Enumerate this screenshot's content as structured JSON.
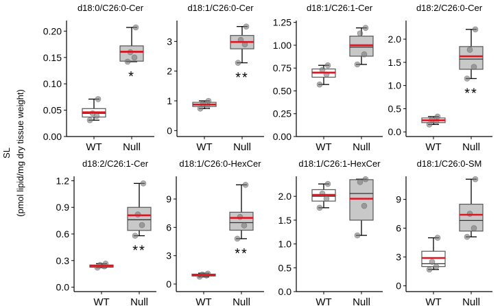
{
  "figure": {
    "ylabel_main": "SL",
    "ylabel_sub": "(pmol lipid/mg dry tissue weight)",
    "colors": {
      "box_wt": "#ffffff",
      "box_null": "#c8c8c8",
      "mean_line": "#e0141e",
      "point": "#7a7a7a",
      "axis": "#000000"
    }
  },
  "chart_data": [
    {
      "type": "box",
      "title": "d18:0/C26:0-Cer",
      "categories": [
        "WT",
        "Null"
      ],
      "ylim": [
        0,
        0.22
      ],
      "yticks": [
        0,
        0.05,
        0.1,
        0.15,
        0.2
      ],
      "ytick_labels": [
        "0.00",
        "0.05",
        "0.10",
        "0.15",
        "0.20"
      ],
      "series": [
        {
          "name": "WT",
          "q1": 0.037,
          "median": 0.044,
          "q3": 0.053,
          "whisker_low": 0.031,
          "whisker_high": 0.071,
          "mean": 0.046,
          "points": [
            0.031,
            0.039,
            0.044,
            0.071
          ]
        },
        {
          "name": "Null",
          "q1": 0.143,
          "median": 0.16,
          "q3": 0.172,
          "whisker_low": 0.142,
          "whisker_high": 0.207,
          "mean": 0.161,
          "points": [
            0.142,
            0.15,
            0.16,
            0.207
          ]
        }
      ],
      "significance": "*"
    },
    {
      "type": "box",
      "title": "d18:1/C26:0-Cer",
      "categories": [
        "WT",
        "Null"
      ],
      "ylim": [
        -0.2,
        3.7
      ],
      "yticks": [
        0,
        1,
        2,
        3
      ],
      "ytick_labels": [
        "0",
        "1",
        "2",
        "3"
      ],
      "series": [
        {
          "name": "WT",
          "q1": 0.81,
          "median": 0.86,
          "q3": 0.95,
          "whisker_low": 0.74,
          "whisker_high": 1.0,
          "mean": 0.88,
          "points": [
            0.74,
            0.82,
            0.9,
            1.0
          ]
        },
        {
          "name": "Null",
          "q1": 2.75,
          "median": 2.97,
          "q3": 3.2,
          "whisker_low": 2.28,
          "whisker_high": 3.5,
          "mean": 2.98,
          "points": [
            2.28,
            2.9,
            3.05,
            3.5
          ]
        }
      ],
      "significance": "**"
    },
    {
      "type": "box",
      "title": "d18:1/C26:1-Cer",
      "categories": [
        "WT",
        "Null"
      ],
      "ylim": [
        0,
        1.27
      ],
      "yticks": [
        0,
        0.25,
        0.5,
        0.75,
        1.0,
        1.25
      ],
      "ytick_labels": [
        "0.00",
        "0.25",
        "0.50",
        "0.75",
        "1.00",
        "1.25"
      ],
      "series": [
        {
          "name": "WT",
          "q1": 0.65,
          "median": 0.7,
          "q3": 0.74,
          "whisker_low": 0.57,
          "whisker_high": 0.78,
          "mean": 0.7,
          "points": [
            0.57,
            0.68,
            0.73,
            0.78
          ]
        },
        {
          "name": "Null",
          "q1": 0.88,
          "median": 0.98,
          "q3": 1.1,
          "whisker_low": 0.79,
          "whisker_high": 1.19,
          "mean": 1.0,
          "points": [
            0.79,
            0.9,
            1.13,
            1.19
          ]
        }
      ],
      "significance": ""
    },
    {
      "type": "box",
      "title": "d18:2/C26:0-Cer",
      "categories": [
        "WT",
        "Null"
      ],
      "ylim": [
        -0.1,
        2.4
      ],
      "yticks": [
        0,
        0.5,
        1.0,
        1.5,
        2.0
      ],
      "ytick_labels": [
        "0.0",
        "0.5",
        "1.0",
        "1.5",
        "2.0"
      ],
      "series": [
        {
          "name": "WT",
          "q1": 0.2,
          "median": 0.24,
          "q3": 0.3,
          "whisker_low": 0.16,
          "whisker_high": 0.33,
          "mean": 0.25,
          "points": [
            0.16,
            0.22,
            0.27,
            0.33
          ]
        },
        {
          "name": "Null",
          "q1": 1.35,
          "median": 1.57,
          "q3": 1.84,
          "whisker_low": 1.15,
          "whisker_high": 2.21,
          "mean": 1.63,
          "points": [
            1.15,
            1.4,
            1.77,
            2.21
          ]
        }
      ],
      "significance": "**"
    },
    {
      "type": "box",
      "title": "d18:2/C26:1-Cer",
      "categories": [
        "WT",
        "Null"
      ],
      "ylim": [
        -0.05,
        1.25
      ],
      "yticks": [
        0,
        0.3,
        0.6,
        0.9,
        1.2
      ],
      "ytick_labels": [
        "0.0",
        "0.3",
        "0.6",
        "0.9",
        "1.2"
      ],
      "series": [
        {
          "name": "WT",
          "q1": 0.225,
          "median": 0.24,
          "q3": 0.25,
          "whisker_low": 0.22,
          "whisker_high": 0.265,
          "mean": 0.24,
          "points": [
            0.22,
            0.235,
            0.25,
            0.265
          ]
        },
        {
          "name": "Null",
          "q1": 0.64,
          "median": 0.76,
          "q3": 0.9,
          "whisker_low": 0.58,
          "whisker_high": 1.17,
          "mean": 0.81,
          "points": [
            0.58,
            0.7,
            0.82,
            1.17
          ]
        }
      ],
      "significance": "**"
    },
    {
      "type": "box",
      "title": "d18:1/C26:0-HexCer",
      "categories": [
        "WT",
        "Null"
      ],
      "ylim": [
        -0.8,
        11.4
      ],
      "yticks": [
        0,
        3,
        6,
        9
      ],
      "ytick_labels": [
        "0",
        "3",
        "6",
        "9"
      ],
      "series": [
        {
          "name": "WT",
          "q1": 0.85,
          "median": 0.95,
          "q3": 1.05,
          "whisker_low": 0.75,
          "whisker_high": 1.15,
          "mean": 0.95,
          "points": [
            0.78,
            0.9,
            1.0,
            1.1
          ]
        },
        {
          "name": "Null",
          "q1": 5.7,
          "median": 6.5,
          "q3": 7.6,
          "whisker_low": 4.8,
          "whisker_high": 10.5,
          "mean": 7.0,
          "points": [
            4.8,
            6.2,
            7.1,
            10.5
          ]
        }
      ],
      "significance": "**"
    },
    {
      "type": "box",
      "title": "d18:1/C26:1-HexCer",
      "categories": [
        "WT",
        "Null"
      ],
      "ylim": [
        0,
        2.42
      ],
      "yticks": [
        0,
        0.5,
        1.0,
        1.5,
        2.0
      ],
      "ytick_labels": [
        "0.0",
        "0.5",
        "1.0",
        "1.5",
        "2.0"
      ],
      "series": [
        {
          "name": "WT",
          "q1": 1.9,
          "median": 2.0,
          "q3": 2.14,
          "whisker_low": 1.76,
          "whisker_high": 2.26,
          "mean": 2.03,
          "points": [
            1.76,
            1.95,
            2.06,
            2.26
          ]
        },
        {
          "name": "Null",
          "q1": 1.5,
          "median": 2.06,
          "q3": 2.35,
          "whisker_low": 1.18,
          "whisker_high": 2.36,
          "mean": 1.95,
          "points": [
            1.18,
            1.8,
            2.3,
            2.36
          ]
        }
      ],
      "significance": ""
    },
    {
      "type": "box",
      "title": "d18:1/C26:0-SM",
      "categories": [
        "WT",
        "Null"
      ],
      "ylim": [
        -0.6,
        11.4
      ],
      "yticks": [
        0,
        3,
        6,
        9
      ],
      "ytick_labels": [
        "0",
        "3",
        "6",
        "9"
      ],
      "series": [
        {
          "name": "WT",
          "q1": 2.0,
          "median": 2.3,
          "q3": 3.6,
          "whisker_low": 1.7,
          "whisker_high": 5.0,
          "mean": 2.9,
          "points": [
            1.7,
            2.0,
            2.5,
            5.0
          ]
        },
        {
          "name": "Null",
          "q1": 5.7,
          "median": 6.8,
          "q3": 8.5,
          "whisker_low": 5.1,
          "whisker_high": 11.1,
          "mean": 7.4,
          "points": [
            5.1,
            6.0,
            7.5,
            11.1
          ]
        }
      ],
      "significance": ""
    }
  ]
}
